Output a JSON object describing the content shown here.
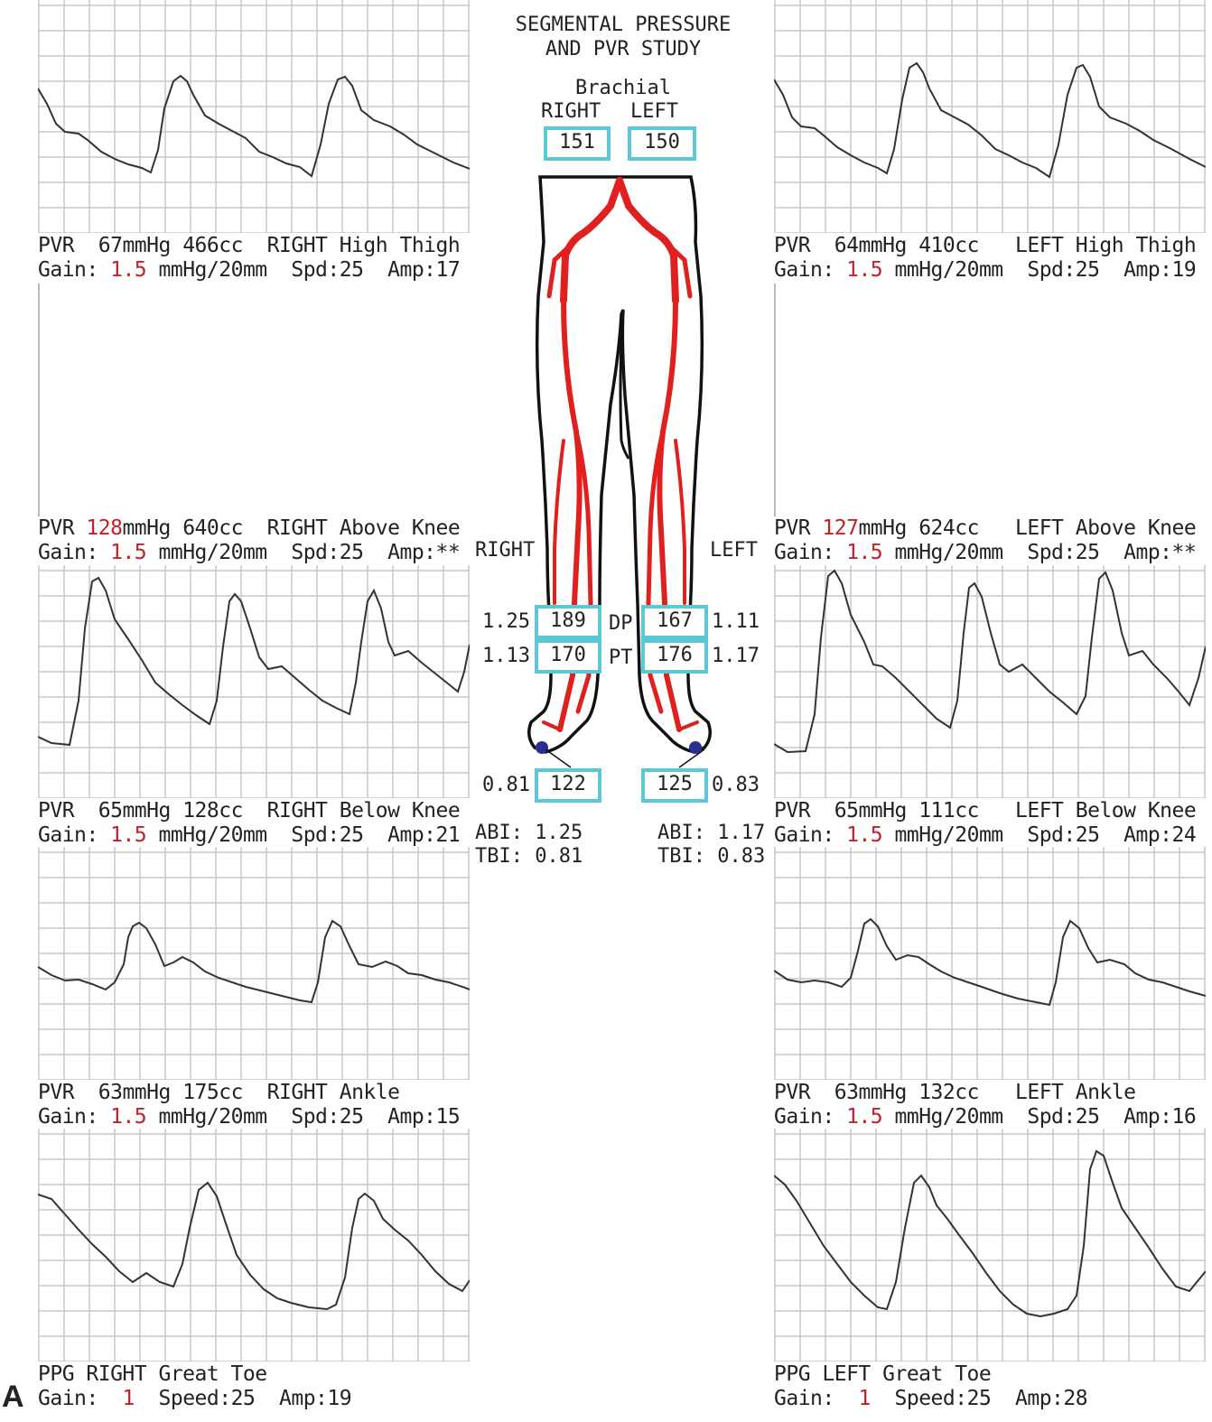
{
  "figure_label": "A",
  "header": {
    "line1": "SEGMENTAL PRESSURE",
    "line2": "AND PVR STUDY"
  },
  "brachial": {
    "title": "Brachial",
    "right_label": "RIGHT",
    "left_label": "LEFT",
    "right_value": "151",
    "left_value": "150"
  },
  "side_labels": {
    "right": "RIGHT",
    "left": "LEFT"
  },
  "ankle": {
    "dp_label": "DP",
    "pt_label": "PT",
    "right_dp": "189",
    "right_dp_index": "1.25",
    "right_pt": "170",
    "right_pt_index": "1.13",
    "left_dp": "167",
    "left_dp_index": "1.11",
    "left_pt": "176",
    "left_pt_index": "1.17"
  },
  "toe": {
    "right_value": "122",
    "right_index": "0.81",
    "left_value": "125",
    "left_index": "0.83"
  },
  "indices": {
    "right_abi": "ABI: 1.25",
    "right_tbi": "TBI: 0.81",
    "left_abi": "ABI: 1.17",
    "left_tbi": "TBI: 0.83"
  },
  "panels": {
    "r_thigh": {
      "l1a": "PVR",
      "l1b": "67mmHg",
      "l1c": "466cc",
      "l1d": "RIGHT High Thigh",
      "gain_label": "Gain:",
      "gain": "1.5",
      "gain_unit": "mmHg/20mm",
      "spd": "Spd:25",
      "amp": "Amp:17",
      "pressure_red": false
    },
    "r_aknee": {
      "l1a": "PVR",
      "l1b": "128",
      "l1b2": "mmHg",
      "l1c": "640cc",
      "l1d": "RIGHT Above Knee",
      "gain_label": "Gain:",
      "gain": "1.5",
      "gain_unit": "mmHg/20mm",
      "spd": "Spd:25",
      "amp": "Amp:**",
      "pressure_red": true
    },
    "r_bknee": {
      "l1a": "PVR",
      "l1b": "65mmHg",
      "l1c": "128cc",
      "l1d": "RIGHT Below Knee",
      "gain_label": "Gain:",
      "gain": "1.5",
      "gain_unit": "mmHg/20mm",
      "spd": "Spd:25",
      "amp": "Amp:21",
      "pressure_red": false
    },
    "r_ankle": {
      "l1a": "PVR",
      "l1b": "63mmHg",
      "l1c": "175cc",
      "l1d": "RIGHT Ankle",
      "gain_label": "Gain:",
      "gain": "1.5",
      "gain_unit": "mmHg/20mm",
      "spd": "Spd:25",
      "amp": "Amp:15",
      "pressure_red": false
    },
    "r_toe": {
      "l1a": "PPG RIGHT Great Toe",
      "gain_label": "Gain:",
      "gain": "1",
      "speed": "Speed:25",
      "amp": "Amp:19"
    },
    "l_thigh": {
      "l1a": "PVR",
      "l1b": "64mmHg",
      "l1c": "410cc",
      "l1d": "LEFT High Thigh",
      "gain_label": "Gain:",
      "gain": "1.5",
      "gain_unit": "mmHg/20mm",
      "spd": "Spd:25",
      "amp": "Amp:19",
      "pressure_red": false
    },
    "l_aknee": {
      "l1a": "PVR",
      "l1b": "127",
      "l1b2": "mmHg",
      "l1c": "624cc",
      "l1d": "LEFT Above Knee",
      "gain_label": "Gain:",
      "gain": "1.5",
      "gain_unit": "mmHg/20mm",
      "spd": "Spd:25",
      "amp": "Amp:**",
      "pressure_red": true
    },
    "l_bknee": {
      "l1a": "PVR",
      "l1b": "65mmHg",
      "l1c": "111cc",
      "l1d": "LEFT Below Knee",
      "gain_label": "Gain:",
      "gain": "1.5",
      "gain_unit": "mmHg/20mm",
      "spd": "Spd:25",
      "amp": "Amp:24",
      "pressure_red": false
    },
    "l_ankle": {
      "l1a": "PVR",
      "l1b": "63mmHg",
      "l1c": "132cc",
      "l1d": "LEFT Ankle",
      "gain_label": "Gain:",
      "gain": "1.5",
      "gain_unit": "mmHg/20mm",
      "spd": "Spd:25",
      "amp": "Amp:16",
      "pressure_red": false
    },
    "l_toe": {
      "l1a": "PPG LEFT Great Toe",
      "gain_label": "Gain:",
      "gain": "1",
      "speed": "Speed:25",
      "amp": "Amp:28"
    }
  },
  "colors": {
    "artery": "#e0201f",
    "box_border": "#5bc8d3",
    "gain_value": "#c0222b",
    "toe_tip": "#2a2f8f"
  }
}
